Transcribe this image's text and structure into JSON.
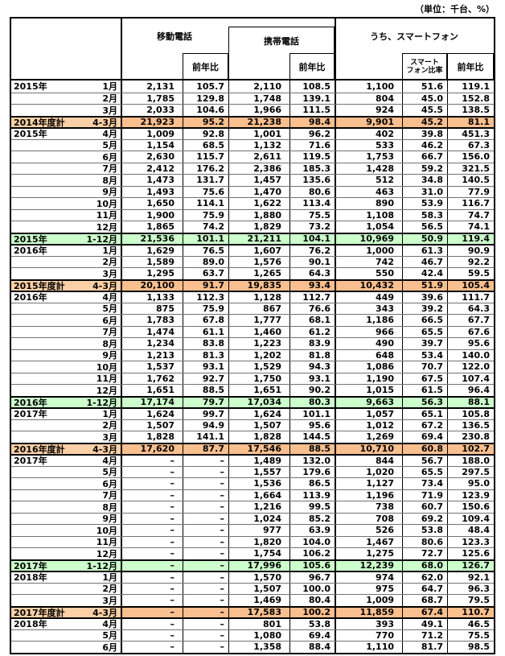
{
  "page": {
    "unit_note": "（単位：千台、%）"
  },
  "header": {
    "mobile": "移動電話",
    "keitai": "携帯電話",
    "smartphone_group": "うち、スマートフォン",
    "yoy": "前年比",
    "ratio_line1": "スマート",
    "ratio_line2": "フォン比率"
  },
  "colors": {
    "fiscal_label_bg": "#FCD0A6",
    "fiscal_value_bg": "#FABF8F",
    "calendar_bg": "#CCFFCC"
  },
  "table": {
    "rows": [
      {
        "year": "2015年",
        "month": "1月",
        "type": "normal",
        "v": [
          "2,131",
          "105.7",
          "2,110",
          "108.5",
          "1,100",
          "51.6",
          "119.1"
        ]
      },
      {
        "year": "",
        "month": "2月",
        "type": "normal",
        "v": [
          "1,785",
          "129.8",
          "1,748",
          "139.1",
          "804",
          "45.0",
          "152.8"
        ]
      },
      {
        "year": "",
        "month": "3月",
        "type": "normal",
        "v": [
          "2,033",
          "104.6",
          "1,966",
          "111.5",
          "924",
          "45.5",
          "138.5"
        ]
      },
      {
        "year": "2014年度計",
        "month": "4-3月",
        "type": "fiscal",
        "v": [
          "21,923",
          "95.2",
          "21,238",
          "98.4",
          "9,901",
          "45.2",
          "81.1"
        ]
      },
      {
        "year": "2015年",
        "month": "4月",
        "type": "normal",
        "v": [
          "1,009",
          "92.8",
          "1,001",
          "96.2",
          "402",
          "39.8",
          "451.3"
        ]
      },
      {
        "year": "",
        "month": "5月",
        "type": "normal",
        "v": [
          "1,154",
          "68.5",
          "1,132",
          "71.6",
          "533",
          "46.2",
          "67.3"
        ]
      },
      {
        "year": "",
        "month": "6月",
        "type": "normal",
        "v": [
          "2,630",
          "115.7",
          "2,611",
          "119.5",
          "1,753",
          "66.7",
          "156.0"
        ]
      },
      {
        "year": "",
        "month": "7月",
        "type": "normal",
        "v": [
          "2,412",
          "176.2",
          "2,386",
          "185.3",
          "1,428",
          "59.2",
          "321.5"
        ]
      },
      {
        "year": "",
        "month": "8月",
        "type": "normal",
        "v": [
          "1,473",
          "131.7",
          "1,457",
          "135.6",
          "512",
          "34.8",
          "140.5"
        ]
      },
      {
        "year": "",
        "month": "9月",
        "type": "normal",
        "v": [
          "1,493",
          "75.6",
          "1,470",
          "80.6",
          "463",
          "31.0",
          "77.9"
        ]
      },
      {
        "year": "",
        "month": "10月",
        "type": "normal",
        "v": [
          "1,650",
          "114.1",
          "1,622",
          "113.4",
          "890",
          "53.9",
          "116.7"
        ]
      },
      {
        "year": "",
        "month": "11月",
        "type": "normal",
        "v": [
          "1,900",
          "75.9",
          "1,880",
          "75.5",
          "1,108",
          "58.3",
          "74.7"
        ]
      },
      {
        "year": "",
        "month": "12月",
        "type": "normal",
        "v": [
          "1,865",
          "74.2",
          "1,829",
          "73.2",
          "1,054",
          "56.5",
          "74.1"
        ]
      },
      {
        "year": "2015年",
        "month": "1-12月",
        "type": "calendar",
        "v": [
          "21,536",
          "101.1",
          "21,211",
          "104.1",
          "10,969",
          "50.9",
          "119.4"
        ]
      },
      {
        "year": "2016年",
        "month": "1月",
        "type": "normal",
        "v": [
          "1,629",
          "76.5",
          "1,607",
          "76.2",
          "1,000",
          "61.3",
          "90.9"
        ]
      },
      {
        "year": "",
        "month": "2月",
        "type": "normal",
        "v": [
          "1,589",
          "89.0",
          "1,576",
          "90.1",
          "742",
          "46.7",
          "92.2"
        ]
      },
      {
        "year": "",
        "month": "3月",
        "type": "normal",
        "v": [
          "1,295",
          "63.7",
          "1,265",
          "64.3",
          "550",
          "42.4",
          "59.5"
        ]
      },
      {
        "year": "2015年度計",
        "month": "4-3月",
        "type": "fiscal",
        "v": [
          "20,100",
          "91.7",
          "19,835",
          "93.4",
          "10,432",
          "51.9",
          "105.4"
        ]
      },
      {
        "year": "2016年",
        "month": "4月",
        "type": "normal",
        "v": [
          "1,133",
          "112.3",
          "1,128",
          "112.7",
          "449",
          "39.6",
          "111.7"
        ]
      },
      {
        "year": "",
        "month": "5月",
        "type": "normal",
        "v": [
          "875",
          "75.9",
          "867",
          "76.6",
          "343",
          "39.2",
          "64.3"
        ]
      },
      {
        "year": "",
        "month": "6月",
        "type": "normal",
        "v": [
          "1,783",
          "67.8",
          "1,777",
          "68.1",
          "1,186",
          "66.5",
          "67.7"
        ]
      },
      {
        "year": "",
        "month": "7月",
        "type": "normal",
        "v": [
          "1,474",
          "61.1",
          "1,460",
          "61.2",
          "966",
          "65.5",
          "67.6"
        ]
      },
      {
        "year": "",
        "month": "8月",
        "type": "normal",
        "v": [
          "1,234",
          "83.8",
          "1,223",
          "83.9",
          "490",
          "39.7",
          "95.6"
        ]
      },
      {
        "year": "",
        "month": "9月",
        "type": "normal",
        "v": [
          "1,213",
          "81.3",
          "1,202",
          "81.8",
          "648",
          "53.4",
          "140.0"
        ]
      },
      {
        "year": "",
        "month": "10月",
        "type": "normal",
        "v": [
          "1,537",
          "93.1",
          "1,529",
          "94.3",
          "1,086",
          "70.7",
          "122.0"
        ]
      },
      {
        "year": "",
        "month": "11月",
        "type": "normal",
        "v": [
          "1,762",
          "92.7",
          "1,750",
          "93.1",
          "1,190",
          "67.5",
          "107.4"
        ]
      },
      {
        "year": "",
        "month": "12月",
        "type": "normal",
        "v": [
          "1,651",
          "88.5",
          "1,651",
          "90.2",
          "1,015",
          "61.5",
          "96.4"
        ]
      },
      {
        "year": "2016年",
        "month": "1-12月",
        "type": "calendar",
        "v": [
          "17,174",
          "79.7",
          "17,034",
          "80.3",
          "9,663",
          "56.3",
          "88.1"
        ]
      },
      {
        "year": "2017年",
        "month": "1月",
        "type": "normal",
        "v": [
          "1,624",
          "99.7",
          "1,624",
          "101.1",
          "1,057",
          "65.1",
          "105.8"
        ]
      },
      {
        "year": "",
        "month": "2月",
        "type": "normal",
        "v": [
          "1,507",
          "94.9",
          "1,507",
          "95.6",
          "1,012",
          "67.2",
          "136.5"
        ]
      },
      {
        "year": "",
        "month": "3月",
        "type": "normal",
        "v": [
          "1,828",
          "141.1",
          "1,828",
          "144.5",
          "1,269",
          "69.4",
          "230.8"
        ]
      },
      {
        "year": "2016年度計",
        "month": "4-3月",
        "type": "fiscal",
        "v": [
          "17,620",
          "87.7",
          "17,546",
          "88.5",
          "10,710",
          "60.8",
          "102.7"
        ]
      },
      {
        "year": "2017年",
        "month": "4月",
        "type": "normal",
        "v": [
          "–",
          "–",
          "1,489",
          "132.0",
          "844",
          "56.7",
          "188.0"
        ]
      },
      {
        "year": "",
        "month": "5月",
        "type": "normal",
        "v": [
          "–",
          "–",
          "1,557",
          "179.6",
          "1,020",
          "65.5",
          "297.5"
        ]
      },
      {
        "year": "",
        "month": "6月",
        "type": "normal",
        "v": [
          "–",
          "–",
          "1,536",
          "86.5",
          "1,127",
          "73.4",
          "95.0"
        ]
      },
      {
        "year": "",
        "month": "7月",
        "type": "normal",
        "v": [
          "–",
          "–",
          "1,664",
          "113.9",
          "1,196",
          "71.9",
          "123.9"
        ]
      },
      {
        "year": "",
        "month": "8月",
        "type": "normal",
        "v": [
          "–",
          "–",
          "1,216",
          "99.5",
          "738",
          "60.7",
          "150.6"
        ]
      },
      {
        "year": "",
        "month": "9月",
        "type": "normal",
        "v": [
          "–",
          "–",
          "1,024",
          "85.2",
          "708",
          "69.2",
          "109.4"
        ]
      },
      {
        "year": "",
        "month": "10月",
        "type": "normal",
        "v": [
          "–",
          "–",
          "977",
          "63.9",
          "526",
          "53.8",
          "48.4"
        ]
      },
      {
        "year": "",
        "month": "11月",
        "type": "normal",
        "v": [
          "–",
          "–",
          "1,820",
          "104.0",
          "1,467",
          "80.6",
          "123.3"
        ]
      },
      {
        "year": "",
        "month": "12月",
        "type": "normal",
        "v": [
          "–",
          "–",
          "1,754",
          "106.2",
          "1,275",
          "72.7",
          "125.6"
        ]
      },
      {
        "year": "2017年",
        "month": "1-12月",
        "type": "calendar",
        "v": [
          "–",
          "–",
          "17,996",
          "105.6",
          "12,239",
          "68.0",
          "126.7"
        ]
      },
      {
        "year": "2018年",
        "month": "1月",
        "type": "normal",
        "v": [
          "–",
          "–",
          "1,570",
          "96.7",
          "974",
          "62.0",
          "92.1"
        ]
      },
      {
        "year": "",
        "month": "2月",
        "type": "normal",
        "v": [
          "–",
          "–",
          "1,507",
          "100.0",
          "975",
          "64.7",
          "96.3"
        ]
      },
      {
        "year": "",
        "month": "3月",
        "type": "normal",
        "v": [
          "–",
          "–",
          "1,469",
          "80.4",
          "1,009",
          "68.7",
          "79.5"
        ]
      },
      {
        "year": "2017年度計",
        "month": "4-3月",
        "type": "fiscal",
        "v": [
          "–",
          "–",
          "17,583",
          "100.2",
          "11,859",
          "67.4",
          "110.7"
        ]
      },
      {
        "year": "2018年",
        "month": "4月",
        "type": "normal",
        "v": [
          "–",
          "–",
          "801",
          "53.8",
          "393",
          "49.1",
          "46.5"
        ]
      },
      {
        "year": "",
        "month": "5月",
        "type": "normal",
        "v": [
          "–",
          "–",
          "1,080",
          "69.4",
          "770",
          "71.2",
          "75.5"
        ]
      },
      {
        "year": "",
        "month": "6月",
        "type": "normal",
        "v": [
          "–",
          "–",
          "1,358",
          "88.4",
          "1,110",
          "81.7",
          "98.5"
        ]
      }
    ]
  }
}
